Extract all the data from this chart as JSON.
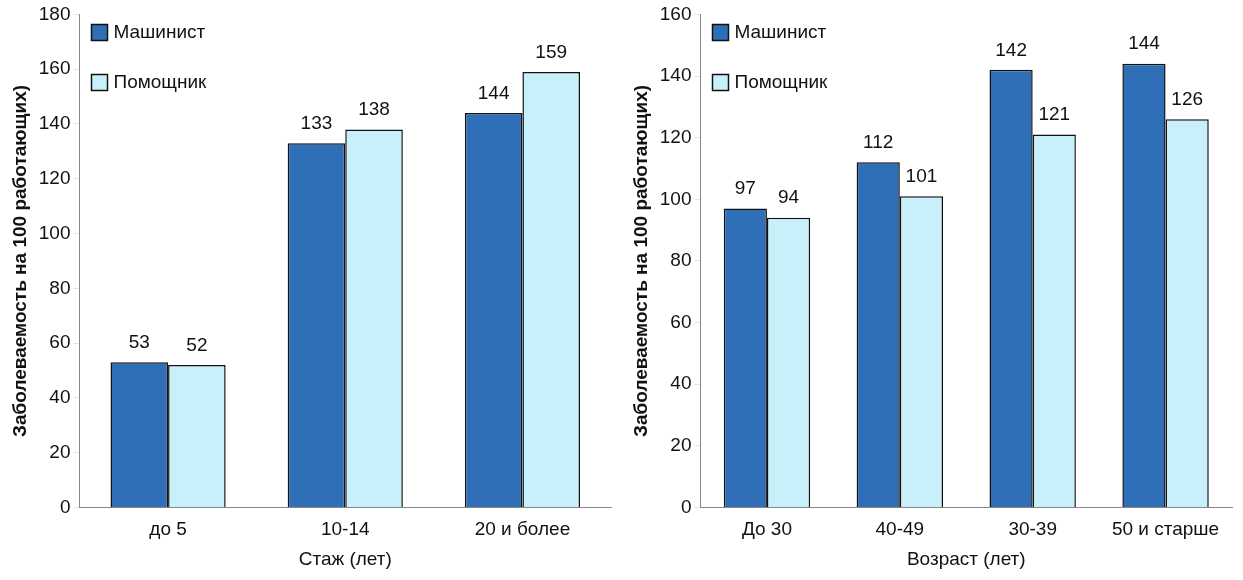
{
  "chart_data": [
    {
      "type": "bar",
      "categories": [
        "до 5",
        "10-14",
        "20 и более"
      ],
      "series": [
        {
          "name": "Машинист",
          "color": "#2e6fb7",
          "values": [
            53,
            133,
            144
          ]
        },
        {
          "name": "Помощник",
          "color": "#c8f0fb",
          "values": [
            52,
            138,
            159
          ]
        }
      ],
      "xlabel": "Стаж (лет)",
      "ylabel": "Заболеваемость на 100 работающих)",
      "ylim": [
        0,
        180
      ],
      "yticks": [
        0,
        20,
        40,
        60,
        80,
        100,
        120,
        140,
        160,
        180
      ],
      "grid": false,
      "legend": "top left",
      "data_labels": true
    },
    {
      "type": "bar",
      "categories": [
        "До 30",
        "40-49",
        "30-39",
        "50 и старше"
      ],
      "series": [
        {
          "name": "Машинист",
          "color": "#2e6fb7",
          "values": [
            97,
            112,
            142,
            144
          ]
        },
        {
          "name": "Помощник",
          "color": "#c8f0fb",
          "values": [
            94,
            101,
            121,
            126
          ]
        }
      ],
      "xlabel": "Возраст (лет)",
      "ylabel": "Заболеваемость на 100 работающих)",
      "ylim": [
        0,
        160
      ],
      "yticks": [
        0,
        20,
        40,
        60,
        80,
        100,
        120,
        140,
        160
      ],
      "grid": false,
      "legend": "top left",
      "data_labels": true
    }
  ]
}
